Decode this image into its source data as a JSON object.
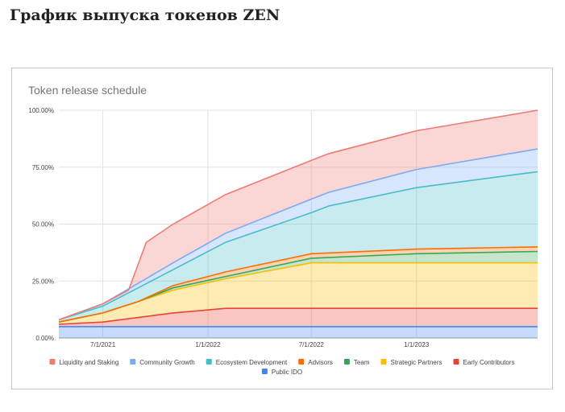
{
  "page": {
    "heading": "График выпуска токенов ZEN"
  },
  "chart_data": {
    "type": "area",
    "stacked": true,
    "title": "Token release schedule",
    "xlabel": "",
    "ylabel": "",
    "x_range": [
      "2021-04-15",
      "2023-08-01"
    ],
    "x_ticks": [
      {
        "date": "2021-07-01",
        "label": "7/1/2021"
      },
      {
        "date": "2022-01-01",
        "label": "1/1/2022"
      },
      {
        "date": "2022-07-01",
        "label": "7/1/2022"
      },
      {
        "date": "2023-01-01",
        "label": "1/1/2023"
      }
    ],
    "ylim": [
      0,
      100
    ],
    "y_ticks": [
      {
        "value": 0,
        "label": "0.00%"
      },
      {
        "value": 25,
        "label": "25.00%"
      },
      {
        "value": 50,
        "label": "50.00%"
      },
      {
        "value": 75,
        "label": "75.00%"
      },
      {
        "value": 100,
        "label": "100.00%"
      }
    ],
    "grid": true,
    "legend_position": "bottom",
    "series": [
      {
        "name": "Public IDO",
        "color": "#4285f4",
        "points": [
          [
            "2021-04-15",
            5
          ],
          [
            "2021-07-01",
            5
          ],
          [
            "2022-01-01",
            5
          ],
          [
            "2022-07-01",
            5
          ],
          [
            "2023-01-01",
            5
          ],
          [
            "2023-08-01",
            5
          ]
        ]
      },
      {
        "name": "Early Contributors",
        "color": "#ea4335",
        "points": [
          [
            "2021-04-15",
            6
          ],
          [
            "2021-07-01",
            7
          ],
          [
            "2021-11-01",
            11
          ],
          [
            "2022-02-01",
            13
          ],
          [
            "2022-07-01",
            13
          ],
          [
            "2023-01-01",
            13
          ],
          [
            "2023-08-01",
            13
          ]
        ]
      },
      {
        "name": "Strategic Partners",
        "color": "#fbbc04",
        "points": [
          [
            "2021-04-15",
            7
          ],
          [
            "2021-07-01",
            11
          ],
          [
            "2021-09-01",
            16
          ],
          [
            "2021-11-01",
            21
          ],
          [
            "2022-02-01",
            26
          ],
          [
            "2022-07-01",
            33
          ],
          [
            "2023-01-01",
            33
          ],
          [
            "2023-08-01",
            33
          ]
        ]
      },
      {
        "name": "Team",
        "color": "#34a853",
        "points": [
          [
            "2021-04-15",
            7
          ],
          [
            "2021-07-01",
            11
          ],
          [
            "2021-09-01",
            16
          ],
          [
            "2021-11-01",
            22
          ],
          [
            "2022-02-01",
            27
          ],
          [
            "2022-07-01",
            35
          ],
          [
            "2023-01-01",
            37
          ],
          [
            "2023-08-01",
            38
          ]
        ]
      },
      {
        "name": "Advisors",
        "color": "#ff6d01",
        "points": [
          [
            "2021-04-15",
            7
          ],
          [
            "2021-07-01",
            11
          ],
          [
            "2021-09-01",
            16
          ],
          [
            "2021-11-01",
            23
          ],
          [
            "2022-02-01",
            29
          ],
          [
            "2022-07-01",
            37
          ],
          [
            "2023-01-01",
            39
          ],
          [
            "2023-08-01",
            40
          ]
        ]
      },
      {
        "name": "Ecosystem Development",
        "color": "#46bdc6",
        "points": [
          [
            "2021-04-15",
            8
          ],
          [
            "2021-07-01",
            14
          ],
          [
            "2021-09-01",
            22
          ],
          [
            "2021-11-01",
            30
          ],
          [
            "2022-02-01",
            42
          ],
          [
            "2022-07-01",
            55
          ],
          [
            "2022-08-01",
            58
          ],
          [
            "2023-01-01",
            66
          ],
          [
            "2023-08-01",
            73
          ]
        ]
      },
      {
        "name": "Community Growth",
        "color": "#7baaf7",
        "points": [
          [
            "2021-04-15",
            8
          ],
          [
            "2021-07-01",
            15
          ],
          [
            "2021-09-01",
            24
          ],
          [
            "2021-11-01",
            33
          ],
          [
            "2022-02-01",
            46
          ],
          [
            "2022-07-01",
            61
          ],
          [
            "2022-08-01",
            64
          ],
          [
            "2023-01-01",
            74
          ],
          [
            "2023-08-01",
            83
          ]
        ]
      },
      {
        "name": "Liquidity and Staking",
        "color": "#f07b72",
        "points": [
          [
            "2021-04-15",
            8
          ],
          [
            "2021-07-01",
            15
          ],
          [
            "2021-08-15",
            21
          ],
          [
            "2021-09-15",
            42
          ],
          [
            "2021-11-01",
            50
          ],
          [
            "2022-02-01",
            63
          ],
          [
            "2022-07-01",
            78
          ],
          [
            "2022-08-01",
            81
          ],
          [
            "2023-01-01",
            91
          ],
          [
            "2023-08-01",
            100
          ]
        ]
      }
    ],
    "legend_order": [
      "Liquidity and Staking",
      "Community Growth",
      "Ecosystem Development",
      "Advisors",
      "Team",
      "Strategic Partners",
      "Early Contributors",
      "Public IDO"
    ]
  }
}
